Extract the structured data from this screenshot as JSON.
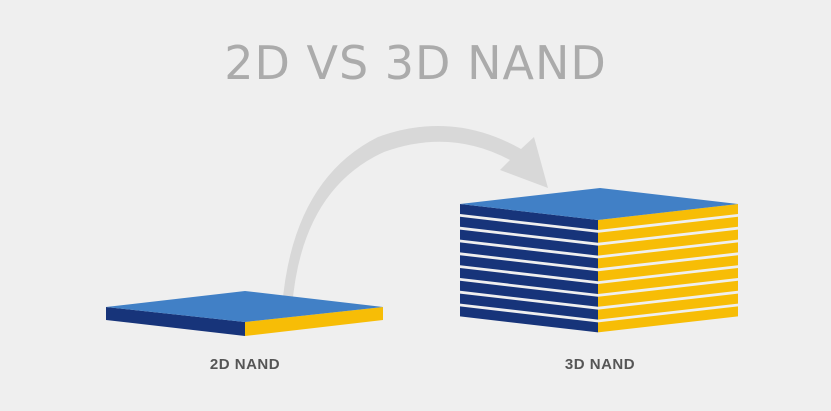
{
  "title": "2D VS 3D NAND",
  "diagram": {
    "left_label": "2D NAND",
    "right_label": "3D NAND",
    "stack_layers": 9,
    "colors": {
      "top_face": "#4180c6",
      "left_face": "#17347a",
      "right_face": "#f7bd06",
      "arrow": "#d8d8d8",
      "background": "#efefef",
      "title_text": "#ababab",
      "label_text": "#555555"
    },
    "arrow_icon": "curved-arrow-icon"
  }
}
